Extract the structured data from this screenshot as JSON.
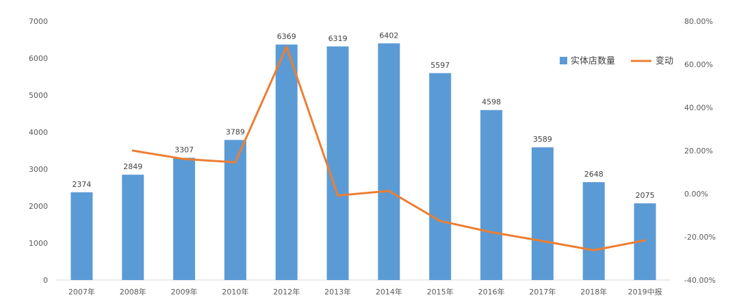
{
  "chart_data": {
    "type": "bar",
    "categories": [
      "2007年",
      "2008年",
      "2009年",
      "2010年",
      "2012年",
      "2013年",
      "2014年",
      "2015年",
      "2016年",
      "2017年",
      "2018年",
      "2019中报"
    ],
    "series": [
      {
        "name": "实体店数量",
        "type": "bar",
        "axis": "left",
        "color": "#5B9BD5",
        "values": [
          2374,
          2849,
          3307,
          3789,
          6369,
          6319,
          6402,
          5597,
          4598,
          3589,
          2648,
          2075
        ]
      },
      {
        "name": "变动",
        "type": "line",
        "axis": "right",
        "color": "#ED7D31",
        "values": [
          null,
          20.0,
          16.1,
          14.6,
          68.1,
          -0.8,
          1.3,
          -12.6,
          -17.8,
          -21.9,
          -26.2,
          -21.6
        ]
      }
    ],
    "y_left": {
      "ylim": [
        0,
        7000
      ],
      "ticks": [
        "0",
        "1000",
        "2000",
        "3000",
        "4000",
        "5000",
        "6000",
        "7000"
      ]
    },
    "y_right": {
      "ylim": [
        -40,
        80
      ],
      "ticks": [
        "-40.00%",
        "-20.00%",
        "0.00%",
        "20.00%",
        "40.00%",
        "60.00%",
        "80.00%"
      ]
    },
    "legend": "top-right",
    "grid": false,
    "title": "",
    "xlabel": "",
    "ylabel": ""
  }
}
